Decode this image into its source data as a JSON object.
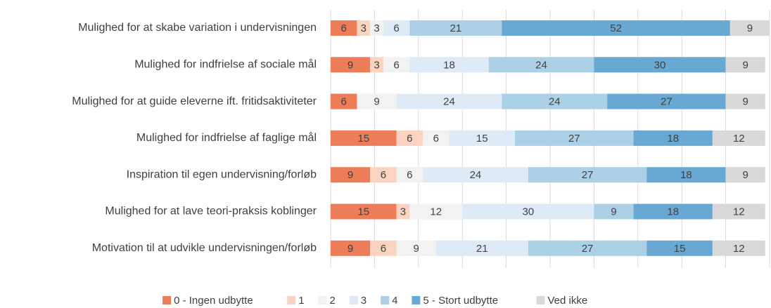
{
  "chart_data": {
    "type": "stacked-barh",
    "categories": [
      "Mulighed for at skabe variation i undervisningen",
      "Mulighed for indfrielse af sociale mål",
      "Mulighed for at guide eleverne ift. fritidsaktiviteter",
      "Mulighed for indfrielse af faglige mål",
      "Inspiration til egen undervisning/forløb",
      "Mulighed for at lave teori-praksis koblinger",
      "Motivation til at udvikle undervisningen/forløb"
    ],
    "series": [
      {
        "name": "0 - Ingen udbytte",
        "color": "#ed7d58",
        "values": [
          6,
          9,
          6,
          15,
          9,
          15,
          9
        ]
      },
      {
        "name": "1",
        "color": "#fbd3c1",
        "values": [
          3,
          3,
          0,
          6,
          6,
          3,
          6
        ]
      },
      {
        "name": "2",
        "color": "#f2f2f2",
        "values": [
          3,
          6,
          9,
          6,
          6,
          12,
          9
        ]
      },
      {
        "name": "3",
        "color": "#deebf7",
        "values": [
          6,
          18,
          24,
          15,
          24,
          30,
          21
        ]
      },
      {
        "name": "4",
        "color": "#acd0e6",
        "values": [
          21,
          24,
          24,
          27,
          27,
          9,
          27
        ]
      },
      {
        "name": "5 - Stort udbytte",
        "color": "#6aa8d4",
        "values": [
          52,
          30,
          27,
          18,
          18,
          18,
          15
        ]
      },
      {
        "name": "Ved ikke",
        "color": "#d9d9d9",
        "values": [
          9,
          9,
          9,
          12,
          9,
          12,
          12
        ]
      }
    ],
    "xlim": [
      0,
      100
    ],
    "xticks": [
      0,
      10,
      20,
      30,
      40,
      50,
      60,
      70,
      80,
      90,
      100
    ],
    "grid": true,
    "legend": "bottom"
  }
}
